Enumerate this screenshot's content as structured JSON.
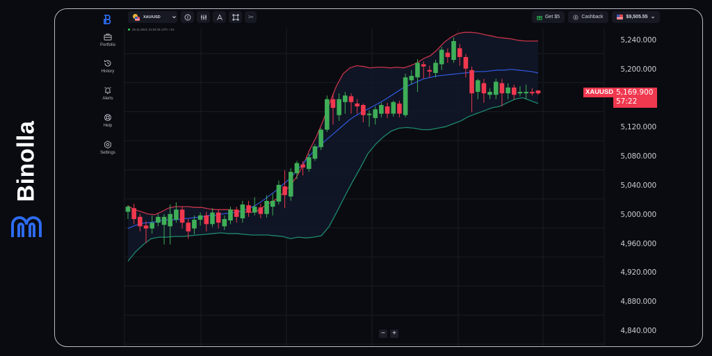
{
  "brand": {
    "name": "Binolla",
    "logo_color": "#2d6bf0"
  },
  "toolbar": {
    "asset": {
      "label": "XAU/USD",
      "icon": "gold-usd-flag-icon"
    },
    "buttons": [
      {
        "name": "indicators-button",
        "icon": "indicator-icon"
      },
      {
        "name": "chart-type-button",
        "icon": "candles-icon"
      },
      {
        "name": "drawing-button",
        "icon": "compass-icon"
      },
      {
        "name": "fullscreen-button",
        "icon": "screen-icon"
      }
    ],
    "timeframe": "1m",
    "get_bonus": "Get $5",
    "cashback": "Cashback",
    "balance": "$9,505.55"
  },
  "sidebar": {
    "items": [
      {
        "label": "Portfolio",
        "icon": "briefcase-icon"
      },
      {
        "label": "History",
        "icon": "history-icon"
      },
      {
        "label": "Alerts",
        "icon": "bell-icon"
      },
      {
        "label": "Help",
        "icon": "lifebuoy-icon"
      },
      {
        "label": "Settings",
        "icon": "gear-icon"
      }
    ]
  },
  "status": {
    "timestamp": "25.11.2021  21:04:31  UTC +10"
  },
  "price_tag": {
    "symbol": "XAUUSD",
    "price": "5,169.900",
    "countdown": "57:22"
  },
  "zoom": {
    "minus": "−",
    "plus": "+"
  },
  "colors": {
    "up": "#3fae58",
    "down": "#f0384f",
    "upper_band": "#c8334a",
    "middle_band": "#2f55d4",
    "lower_band": "#1f8a70",
    "grid": "#1a1c26",
    "bg": "#0a0b10"
  },
  "chart_data": {
    "type": "candlestick",
    "title": "XAU/USD 1m",
    "ylabel": "",
    "xlabel": "",
    "ylim": [
      4820,
      5260
    ],
    "y_ticks": [
      "5,240.000",
      "5,200.000",
      "5,160.000",
      "5,120.000",
      "5,080.000",
      "5,040.000",
      "5,000.000",
      "4,960.000",
      "4,920.000",
      "4,880.000",
      "4,840.000"
    ],
    "y_tick_values": [
      5240,
      5200,
      5160,
      5120,
      5080,
      5040,
      5000,
      4960,
      4920,
      4880,
      4840
    ],
    "grid": true,
    "indicators": [
      "Bollinger Bands (upper, middle, lower)"
    ],
    "candles": [
      [
        5005,
        5012,
        4998,
        5014,
        4995
      ],
      [
        5010,
        4995,
        4990,
        5016,
        4988
      ],
      [
        4998,
        4985,
        4982,
        5002,
        4978
      ],
      [
        4986,
        4982,
        4965,
        4992,
        4962
      ],
      [
        4982,
        4990,
        4980,
        5000,
        4975
      ],
      [
        4990,
        4998,
        4995,
        5002,
        4985
      ],
      [
        4987,
        4998,
        4966,
        5002,
        4960
      ],
      [
        4985,
        5002,
        4975,
        5015,
        4960
      ],
      [
        4994,
        5008,
        5004,
        5018,
        4990
      ],
      [
        5008,
        4990,
        4986,
        5012,
        4982
      ],
      [
        4990,
        4978,
        4972,
        4995,
        4968
      ],
      [
        4982,
        4994,
        4978,
        5000,
        4974
      ],
      [
        4994,
        5000,
        4999,
        5004,
        4986
      ],
      [
        5000,
        4988,
        4982,
        5005,
        4978
      ],
      [
        4988,
        5004,
        5000,
        5010,
        4984
      ],
      [
        5004,
        4990,
        4986,
        5008,
        4982
      ],
      [
        4985,
        4995,
        4990,
        5000,
        4980
      ],
      [
        4993,
        5008,
        5005,
        5012,
        4988
      ],
      [
        5008,
        4998,
        4995,
        5012,
        4990
      ],
      [
        4996,
        5015,
        5012,
        5020,
        4990
      ],
      [
        5014,
        5004,
        5000,
        5020,
        4998
      ],
      [
        5004,
        5012,
        5010,
        5025,
        5000
      ],
      [
        5011,
        5002,
        5000,
        5016,
        4996
      ],
      [
        5002,
        5020,
        5018,
        5028,
        4997
      ],
      [
        5012,
        5020,
        5018,
        5030,
        5000
      ],
      [
        5019,
        5042,
        5040,
        5048,
        5015
      ],
      [
        5040,
        5028,
        5025,
        5062,
        5010
      ],
      [
        5026,
        5060,
        5058,
        5065,
        5020
      ],
      [
        5058,
        5072,
        5070,
        5075,
        5050
      ],
      [
        5070,
        5066,
        5062,
        5075,
        5055
      ],
      [
        5064,
        5080,
        5078,
        5085,
        5060
      ],
      [
        5078,
        5095,
        5092,
        5098,
        5075
      ],
      [
        5094,
        5118,
        5116,
        5120,
        5090
      ],
      [
        5118,
        5160,
        5158,
        5165,
        5115
      ],
      [
        5160,
        5148,
        5135,
        5168,
        5125
      ],
      [
        5138,
        5160,
        5156,
        5168,
        5130
      ],
      [
        5156,
        5165,
        5160,
        5170,
        5140
      ],
      [
        5164,
        5156,
        5150,
        5168,
        5140
      ],
      [
        5154,
        5150,
        5145,
        5160,
        5140
      ],
      [
        5152,
        5138,
        5132,
        5154,
        5128
      ],
      [
        5138,
        5140,
        5132,
        5145,
        5122
      ],
      [
        5134,
        5146,
        5140,
        5150,
        5125
      ],
      [
        5140,
        5152,
        5150,
        5155,
        5135
      ],
      [
        5150,
        5140,
        5138,
        5155,
        5134
      ],
      [
        5140,
        5156,
        5154,
        5158,
        5136
      ],
      [
        5154,
        5140,
        5138,
        5158,
        5135
      ],
      [
        5138,
        5190,
        5188,
        5195,
        5135
      ],
      [
        5186,
        5192,
        5188,
        5200,
        5180
      ],
      [
        5190,
        5210,
        5208,
        5215,
        5170
      ],
      [
        5208,
        5205,
        5200,
        5212,
        5188
      ],
      [
        5200,
        5198,
        5194,
        5206,
        5190
      ],
      [
        5196,
        5210,
        5208,
        5214,
        5190
      ],
      [
        5208,
        5228,
        5225,
        5232,
        5200
      ],
      [
        5224,
        5218,
        5214,
        5230,
        5210
      ],
      [
        5214,
        5240,
        5232,
        5245,
        5210
      ],
      [
        5230,
        5218,
        5212,
        5236,
        5206
      ],
      [
        5218,
        5202,
        5195,
        5222,
        5190
      ],
      [
        5200,
        5168,
        5160,
        5205,
        5142
      ],
      [
        5170,
        5186,
        5182,
        5188,
        5160
      ],
      [
        5182,
        5168,
        5162,
        5188,
        5155
      ],
      [
        5166,
        5170,
        5166,
        5175,
        5160
      ],
      [
        5166,
        5184,
        5180,
        5188,
        5160
      ],
      [
        5182,
        5168,
        5166,
        5188,
        5150
      ],
      [
        5168,
        5176,
        5174,
        5182,
        5160
      ],
      [
        5176,
        5166,
        5164,
        5180,
        5160
      ],
      [
        5168,
        5170,
        5164,
        5178,
        5164
      ],
      [
        5168,
        5170,
        5166,
        5180,
        5160
      ],
      [
        5170,
        5168,
        5166,
        5175,
        5165
      ],
      [
        5172,
        5168,
        5166,
        5172,
        5166
      ]
    ],
    "candle_format": "[open, close, low_adj, high, low]",
    "upper_band": [
      5013,
      5008,
      5005,
      5002,
      5001,
      5005,
      5010,
      5012,
      5012,
      5012,
      5011,
      5011,
      5009,
      5008,
      5008,
      5008,
      5007,
      5005,
      5004,
      5005,
      5011,
      5017,
      5022,
      5030,
      5040,
      5052,
      5068,
      5090,
      5108,
      5130,
      5155,
      5178,
      5195,
      5203,
      5206,
      5205,
      5203,
      5204,
      5204,
      5203,
      5204,
      5203,
      5206,
      5210,
      5216,
      5220,
      5228,
      5238,
      5245,
      5250,
      5252,
      5252,
      5251,
      5249,
      5247,
      5245,
      5244,
      5243,
      5241,
      5240,
      5240,
      5240
    ],
    "middle_band": [
      4982,
      4986,
      4989,
      4990,
      4991,
      4993,
      4994,
      4994,
      4995,
      4996,
      4997,
      4998,
      5000,
      5000,
      5002,
      5003,
      5004,
      5006,
      5010,
      5014,
      5020,
      5027,
      5034,
      5042,
      5050,
      5060,
      5071,
      5082,
      5092,
      5100,
      5108,
      5116,
      5124,
      5132,
      5138,
      5143,
      5148,
      5153,
      5158,
      5164,
      5170,
      5176,
      5180,
      5184,
      5188,
      5190,
      5192,
      5193,
      5194,
      5195,
      5196,
      5197,
      5198,
      5198,
      5199,
      5200,
      5200,
      5201,
      5200,
      5199,
      5198,
      5196
    ],
    "lower_band": [
      4937,
      4950,
      4960,
      4968,
      4970,
      4970,
      4971,
      4971,
      4972,
      4973,
      4974,
      4975,
      4976,
      4975,
      4975,
      4974,
      4973,
      4973,
      4973,
      4972,
      4971,
      4968,
      4970,
      4969,
      4970,
      4972,
      4985,
      5005,
      5026,
      5046,
      5065,
      5085,
      5098,
      5108,
      5116,
      5120,
      5121,
      5120,
      5118,
      5118,
      5120,
      5122,
      5126,
      5130,
      5136,
      5140,
      5144,
      5148,
      5150,
      5155,
      5160,
      5162,
      5158,
      5154
    ]
  }
}
